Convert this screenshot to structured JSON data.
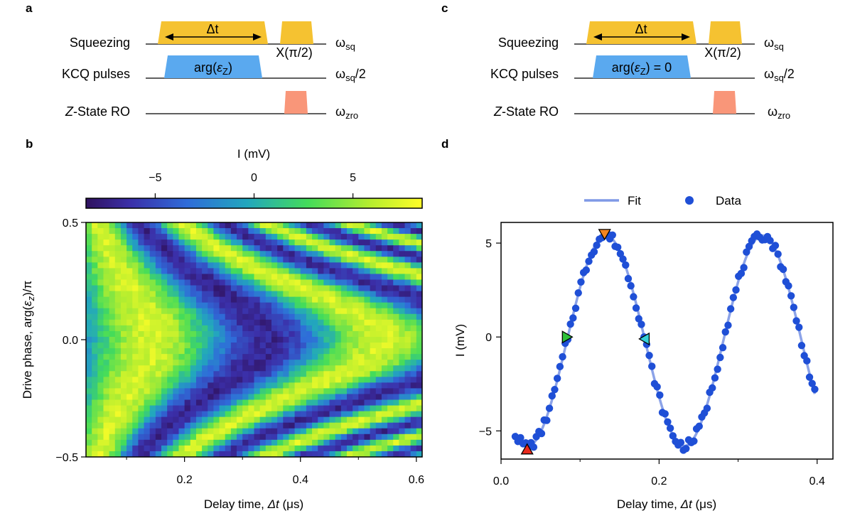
{
  "panels": {
    "a": {
      "label": "a",
      "rows": [
        {
          "name": "Squeezing",
          "freq": "ω",
          "freq_sub": "sq",
          "freq_suffix": ""
        },
        {
          "name": "KCQ pulses",
          "freq": "ω",
          "freq_sub": "sq",
          "freq_suffix": "/2"
        },
        {
          "name_italic": "Z",
          "name": "-State RO",
          "freq": "ω",
          "freq_sub": "zro",
          "freq_suffix": ""
        }
      ],
      "delta_label": "Δt",
      "xpulse_label": "X(π/2)",
      "kcq_pulse_label": "arg(",
      "kcq_pulse_eps": "ε",
      "kcq_pulse_sub": "Z",
      "kcq_pulse_end": ")"
    },
    "c": {
      "label": "c",
      "rows": [
        {
          "name": "Squeezing",
          "freq": "ω",
          "freq_sub": "sq",
          "freq_suffix": ""
        },
        {
          "name": "KCQ pulses",
          "freq": "ω",
          "freq_sub": "sq",
          "freq_suffix": "/2"
        },
        {
          "name_italic": "Z",
          "name": "-State RO",
          "freq": "ω",
          "freq_sub": "zro",
          "freq_suffix": ""
        }
      ],
      "delta_label": "Δt",
      "xpulse_label": "X(π/2)",
      "kcq_pulse_label": "arg(",
      "kcq_pulse_eps": "ε",
      "kcq_pulse_sub": "Z",
      "kcq_pulse_end": ") = 0"
    },
    "b": {
      "label": "b"
    },
    "d": {
      "label": "d"
    }
  },
  "colors": {
    "squeeze": "#f5c231",
    "kcq": "#5aa9ef",
    "readout": "#f99679",
    "fit": "#7f99e6",
    "data": "#1f4fd6",
    "marker_red": "#e8291c",
    "marker_orange": "#f58520",
    "marker_green": "#2ec13b",
    "marker_cyan": "#35cfd8"
  },
  "chart_data": [
    {
      "id": "b",
      "type": "heatmap",
      "colormap": "viridis",
      "colorbar": {
        "label": "I (mV)",
        "ticks": [
          -5,
          0,
          5
        ],
        "tick_labels": [
          "−5",
          "0",
          "5"
        ],
        "range": [
          -8.5,
          8.5
        ],
        "position": "top"
      },
      "xlabel_pre": "Delay time, ",
      "xlabel_sym": "Δt",
      "xlabel_post": " (μs)",
      "ylabel_pre": "Drive phase, arg(",
      "ylabel_eps": "ε",
      "ylabel_sub": "z",
      "ylabel_post": ")/π",
      "xlim": [
        0.03,
        0.61
      ],
      "ylim": [
        -0.5,
        0.5
      ],
      "xticks": [
        0.2,
        0.4,
        0.6
      ],
      "xtick_labels": [
        "0.2",
        "0.4",
        "0.6"
      ],
      "yticks": [
        0.5,
        0.0,
        -0.5
      ],
      "ytick_labels": [
        "0.5",
        "0.0",
        "−0.5"
      ],
      "grid": {
        "nx": 58,
        "ny": 41
      },
      "model": "I(t, φ) ≈ A·cos(2π·f(φ)·t + phase), f(φ) ≈ 2.5 + 18·φ² MHz",
      "amplitude_mV": 7
    },
    {
      "id": "d",
      "type": "scatter",
      "legend": [
        {
          "name": "Fit",
          "style": "line"
        },
        {
          "name": "Data",
          "style": "marker"
        }
      ],
      "legend_position": "top-center",
      "xlabel_pre": "Delay time, ",
      "xlabel_sym": "Δt",
      "xlabel_post": " (μs)",
      "ylabel": "I (mV)",
      "xlim": [
        0.0,
        0.42
      ],
      "ylim": [
        -6.5,
        6.1
      ],
      "xticks": [
        0.0,
        0.2,
        0.4
      ],
      "xtick_labels": [
        "0.0",
        "0.2",
        "0.4"
      ],
      "minor_xticks": [
        0.1,
        0.3
      ],
      "yticks": [
        5,
        0,
        -5
      ],
      "ytick_labels": [
        "5",
        "0",
        "−5"
      ],
      "fit": {
        "amplitude": 5.6,
        "period_us": 0.198,
        "x0_us": 0.0338,
        "offset": -0.2,
        "x_range": [
          0.018,
          0.397
        ]
      },
      "data_x_range": [
        0.018,
        0.397
      ],
      "n_points": 115,
      "markers": [
        {
          "name": "red-up",
          "x": 0.033,
          "y": -6.0,
          "shape": "triangle-up",
          "color": "#e8291c"
        },
        {
          "name": "green-right",
          "x": 0.083,
          "y": 0.0,
          "shape": "triangle-right",
          "color": "#2ec13b"
        },
        {
          "name": "orange-down",
          "x": 0.131,
          "y": 5.5,
          "shape": "triangle-down",
          "color": "#f58520"
        },
        {
          "name": "cyan-left",
          "x": 0.182,
          "y": -0.1,
          "shape": "triangle-left",
          "color": "#35cfd8"
        }
      ]
    }
  ]
}
